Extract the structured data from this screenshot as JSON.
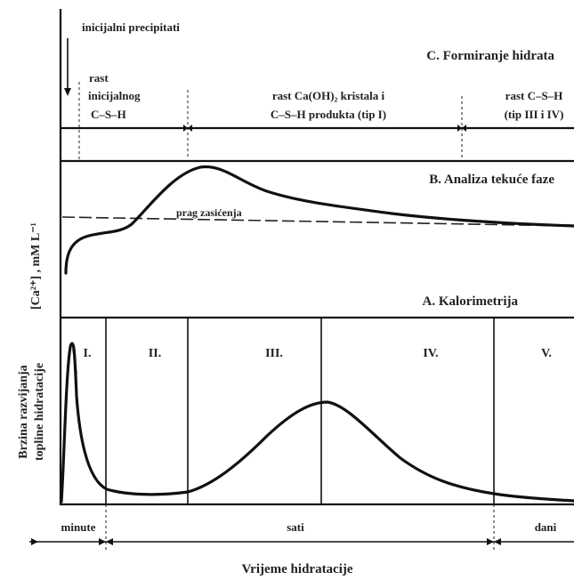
{
  "section_c": {
    "initial_precipitates_label": "inicijalni precipitati",
    "title": "C. Formiranje hidrata",
    "phase_1": [
      "rast",
      "inicijalnog",
      "C–S–H"
    ],
    "phase_2": [
      "rast Ca(OH)₂ kristala i",
      "C–S–H produkta (tip I)"
    ],
    "phase_3": [
      "rast C–S–H",
      "(tip III i IV)"
    ]
  },
  "section_b": {
    "title": "B. Analiza tekuće faze",
    "y_axis_label": "[Ca²⁺] , mM L⁻¹",
    "saturation_label": "prag zasićenja"
  },
  "section_a": {
    "title": "A. Kalorimetrija",
    "y_axis_label_line1": "Brzina razvijanja",
    "y_axis_label_line2": "topline hidratacije",
    "stages": [
      "I.",
      "II.",
      "III.",
      "IV.",
      "V."
    ]
  },
  "time_axis": {
    "segments": [
      "minute",
      "sati",
      "dani"
    ],
    "title": "Vrijeme hidratacije"
  }
}
